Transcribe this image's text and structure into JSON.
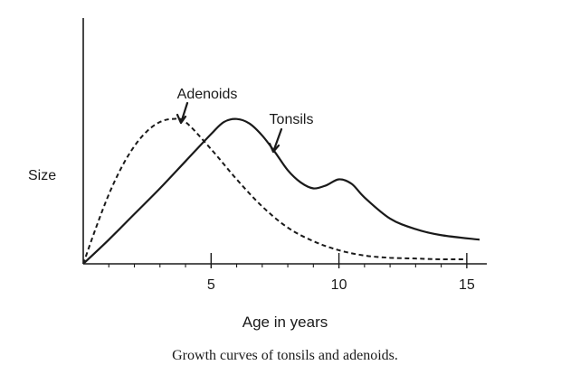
{
  "chart_data": {
    "type": "line",
    "title": "",
    "xlabel": "Age in years",
    "ylabel": "Size",
    "caption": "Growth curves of tonsils and adenoids.",
    "xlim": [
      0,
      15.5
    ],
    "ylim": [
      0,
      10
    ],
    "xticks": [
      5,
      10,
      15
    ],
    "grid": false,
    "series": [
      {
        "name": "Adenoids",
        "style": "dashed",
        "color": "#1a1a1a",
        "x": [
          0,
          0.5,
          1,
          1.5,
          2,
          2.5,
          3,
          3.5,
          4,
          5,
          6,
          7,
          8,
          9,
          10,
          11,
          12,
          13,
          14,
          15
        ],
        "y": [
          0,
          2.4,
          4.6,
          6.4,
          7.8,
          8.8,
          9.4,
          9.6,
          9.4,
          7.6,
          5.6,
          3.8,
          2.4,
          1.5,
          0.9,
          0.55,
          0.4,
          0.35,
          0.3,
          0.3
        ]
      },
      {
        "name": "Tonsils",
        "style": "solid",
        "color": "#1a1a1a",
        "x": [
          0,
          1,
          2,
          3,
          4,
          5,
          5.5,
          6,
          6.5,
          7,
          7.5,
          8,
          8.5,
          9,
          9.5,
          10,
          10.5,
          11,
          12,
          13,
          14,
          15.5
        ],
        "y": [
          0,
          1.6,
          3.3,
          5.0,
          6.8,
          8.6,
          9.4,
          9.6,
          9.3,
          8.5,
          7.4,
          6.2,
          5.4,
          5.0,
          5.2,
          5.6,
          5.3,
          4.4,
          3.0,
          2.3,
          1.9,
          1.6
        ]
      }
    ],
    "annotations": [
      {
        "text": "Adenoids",
        "points_to": [
          3.7,
          9.6
        ]
      },
      {
        "text": "Tonsils",
        "points_to": [
          7.3,
          7.9
        ]
      }
    ]
  }
}
